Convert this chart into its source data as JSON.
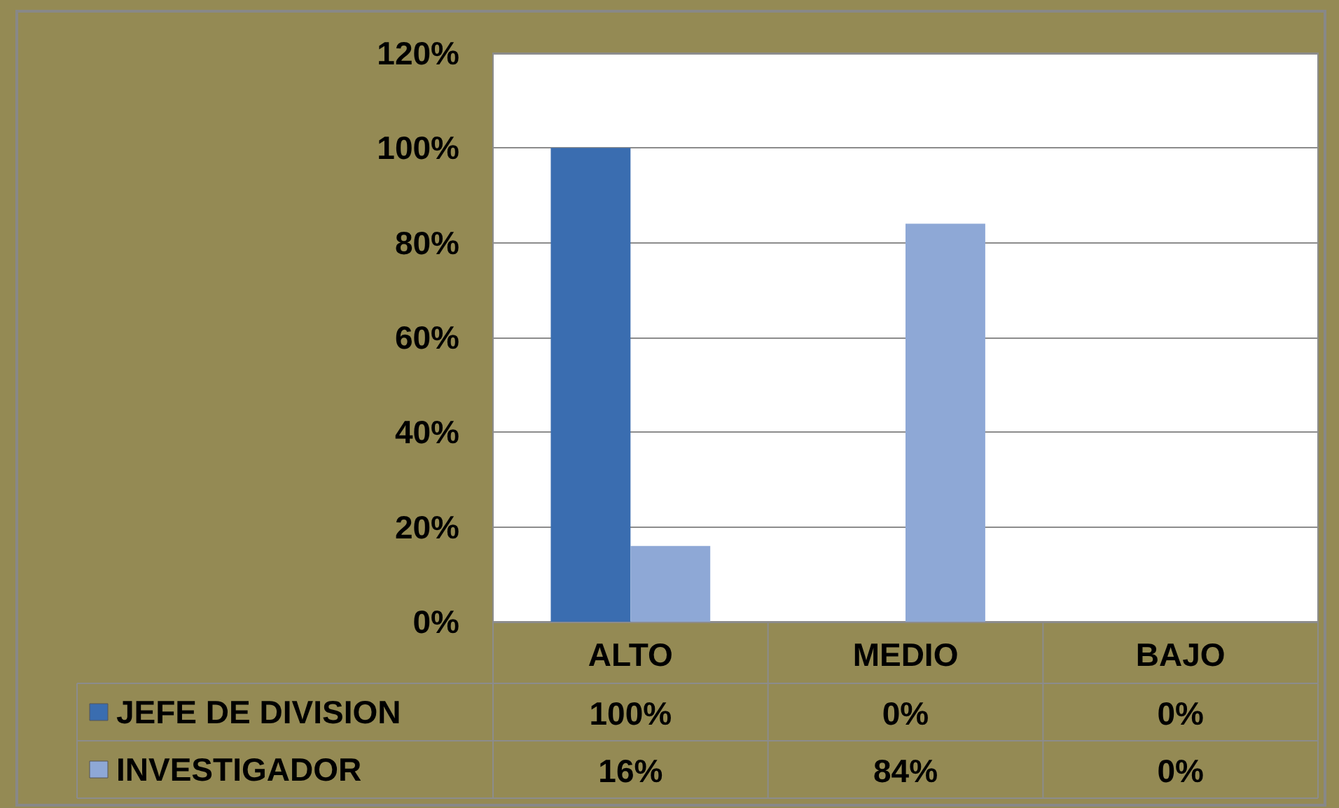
{
  "chart_data": {
    "type": "bar",
    "categories": [
      "ALTO",
      "MEDIO",
      "BAJO"
    ],
    "series": [
      {
        "name": "JEFE DE DIVISION",
        "color": "#3a6db0",
        "values": [
          100,
          0,
          0
        ],
        "value_labels": [
          "100%",
          "0%",
          "0%"
        ]
      },
      {
        "name": "INVESTIGADOR",
        "color": "#8ea8d6",
        "values": [
          16,
          84,
          0
        ],
        "value_labels": [
          "16%",
          "84%",
          "0%"
        ]
      }
    ],
    "ylim": [
      0,
      120
    ],
    "yticks": [
      {
        "value": 0,
        "label": "0%"
      },
      {
        "value": 20,
        "label": "20%"
      },
      {
        "value": 40,
        "label": "40%"
      },
      {
        "value": 60,
        "label": "60%"
      },
      {
        "value": 80,
        "label": "80%"
      },
      {
        "value": 100,
        "label": "100%"
      },
      {
        "value": 120,
        "label": "120%"
      }
    ],
    "grid": "y",
    "legend": "bottom"
  }
}
